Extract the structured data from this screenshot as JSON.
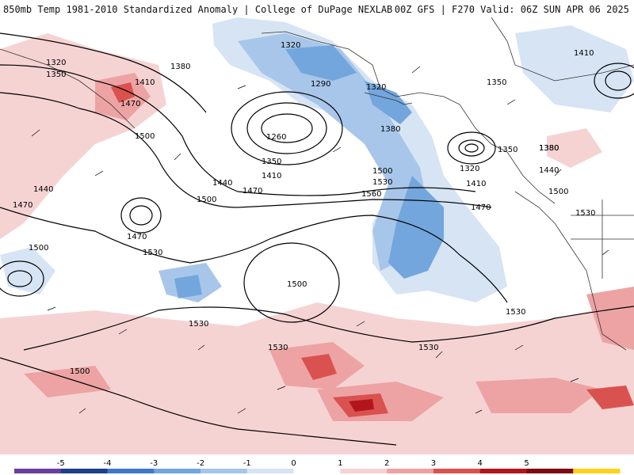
{
  "header": {
    "left": "850mb Temp 1981-2010 Standardized Anomaly | College of DuPage NEXLAB",
    "right": "00Z GFS | F270 Valid: 06Z SUN APR 06 2025"
  },
  "contour_labels": [
    "1320",
    "1350",
    "1410",
    "1380",
    "1470",
    "1500",
    "1440",
    "1470",
    "1470",
    "1500",
    "1530",
    "1530",
    "1500",
    "1530",
    "1290",
    "1260",
    "1320",
    "1350",
    "1410",
    "1440",
    "1470",
    "1320",
    "1350",
    "1380",
    "1500",
    "1530",
    "1560",
    "1530",
    "1380",
    "1320",
    "1350",
    "1380",
    "1410",
    "1470",
    "1440",
    "1500",
    "1530",
    "1410",
    "1500",
    "1530",
    "1500"
  ],
  "colorbar": {
    "ticks": [
      "-5",
      "-4",
      "-3",
      "-2",
      "-1",
      "0",
      "1",
      "2",
      "3",
      "4",
      "5"
    ],
    "colors": [
      "#6a3fa0",
      "#1e3f8a",
      "#3f78c8",
      "#73a6dc",
      "#a7c6ea",
      "#d6e4f4",
      "#ffffff",
      "#f6d3d3",
      "#eda3a3",
      "#d9524f",
      "#b2161c",
      "#7e0a12",
      "#ffd21a"
    ]
  }
}
